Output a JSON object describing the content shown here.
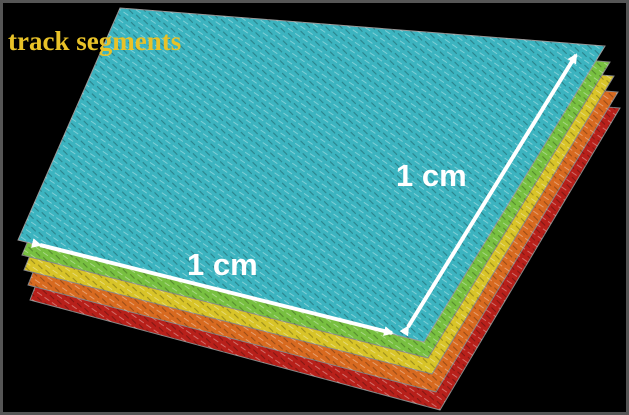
{
  "title": "track segments",
  "dimension_labels": [
    "1 cm",
    "1 cm"
  ]
}
